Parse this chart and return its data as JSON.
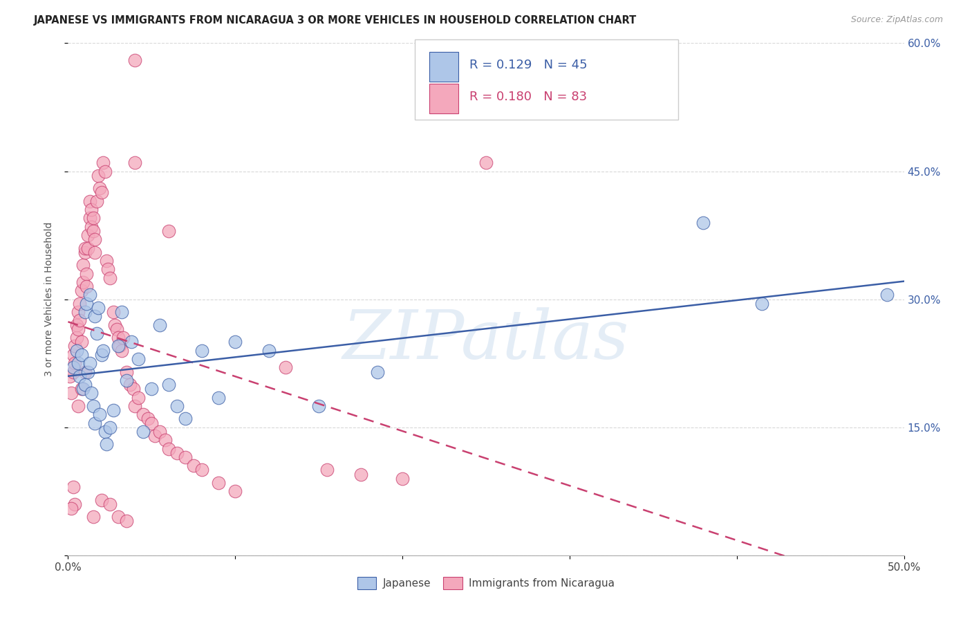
{
  "title": "JAPANESE VS IMMIGRANTS FROM NICARAGUA 3 OR MORE VEHICLES IN HOUSEHOLD CORRELATION CHART",
  "source": "Source: ZipAtlas.com",
  "ylabel": "3 or more Vehicles in Household",
  "x_min": 0.0,
  "x_max": 0.5,
  "y_min": 0.0,
  "y_max": 0.6,
  "x_ticks": [
    0.0,
    0.1,
    0.2,
    0.3,
    0.4,
    0.5
  ],
  "x_tick_labels_bottom": [
    "0.0%",
    "",
    "",
    "",
    "",
    "50.0%"
  ],
  "y_ticks": [
    0.0,
    0.15,
    0.3,
    0.45,
    0.6
  ],
  "y_tick_labels_right": [
    "",
    "15.0%",
    "30.0%",
    "45.0%",
    "60.0%"
  ],
  "legend_labels": [
    "Japanese",
    "Immigrants from Nicaragua"
  ],
  "R_japanese": 0.129,
  "N_japanese": 45,
  "R_nicaragua": 0.18,
  "N_nicaragua": 83,
  "color_japanese": "#aec6e8",
  "color_nicaragua": "#f4a8bc",
  "line_color_japanese": "#3b5ea6",
  "line_color_nicaragua": "#c94070",
  "text_color_blue": "#3b5ea6",
  "watermark": "ZIPatlas",
  "bg_color": "#ffffff",
  "grid_color": "#d8d8d8",
  "japanese_x": [
    0.003,
    0.005,
    0.006,
    0.007,
    0.008,
    0.009,
    0.01,
    0.01,
    0.011,
    0.012,
    0.013,
    0.013,
    0.014,
    0.015,
    0.016,
    0.016,
    0.017,
    0.018,
    0.019,
    0.02,
    0.021,
    0.022,
    0.023,
    0.025,
    0.027,
    0.03,
    0.032,
    0.035,
    0.038,
    0.042,
    0.045,
    0.05,
    0.055,
    0.06,
    0.065,
    0.07,
    0.08,
    0.09,
    0.1,
    0.12,
    0.15,
    0.185,
    0.38,
    0.415,
    0.49
  ],
  "japanese_y": [
    0.22,
    0.24,
    0.225,
    0.21,
    0.235,
    0.195,
    0.2,
    0.285,
    0.295,
    0.215,
    0.225,
    0.305,
    0.19,
    0.175,
    0.155,
    0.28,
    0.26,
    0.29,
    0.165,
    0.235,
    0.24,
    0.145,
    0.13,
    0.15,
    0.17,
    0.245,
    0.285,
    0.205,
    0.25,
    0.23,
    0.145,
    0.195,
    0.27,
    0.2,
    0.175,
    0.16,
    0.24,
    0.185,
    0.25,
    0.24,
    0.175,
    0.215,
    0.39,
    0.295,
    0.305
  ],
  "nicaragua_x": [
    0.001,
    0.002,
    0.003,
    0.003,
    0.004,
    0.004,
    0.005,
    0.005,
    0.006,
    0.006,
    0.007,
    0.007,
    0.008,
    0.008,
    0.009,
    0.009,
    0.01,
    0.01,
    0.011,
    0.011,
    0.012,
    0.012,
    0.013,
    0.013,
    0.014,
    0.014,
    0.015,
    0.015,
    0.016,
    0.016,
    0.017,
    0.018,
    0.019,
    0.02,
    0.021,
    0.022,
    0.023,
    0.024,
    0.025,
    0.027,
    0.028,
    0.029,
    0.03,
    0.031,
    0.032,
    0.033,
    0.035,
    0.037,
    0.039,
    0.04,
    0.042,
    0.045,
    0.048,
    0.05,
    0.052,
    0.055,
    0.058,
    0.06,
    0.065,
    0.07,
    0.075,
    0.08,
    0.09,
    0.1,
    0.04,
    0.25,
    0.04,
    0.06,
    0.13,
    0.155,
    0.175,
    0.2,
    0.02,
    0.025,
    0.03,
    0.035,
    0.015,
    0.01,
    0.008,
    0.006,
    0.004,
    0.003,
    0.002
  ],
  "nicaragua_y": [
    0.21,
    0.19,
    0.215,
    0.235,
    0.225,
    0.245,
    0.255,
    0.27,
    0.285,
    0.265,
    0.295,
    0.275,
    0.25,
    0.31,
    0.34,
    0.32,
    0.355,
    0.36,
    0.33,
    0.315,
    0.375,
    0.36,
    0.395,
    0.415,
    0.405,
    0.385,
    0.38,
    0.395,
    0.37,
    0.355,
    0.415,
    0.445,
    0.43,
    0.425,
    0.46,
    0.45,
    0.345,
    0.335,
    0.325,
    0.285,
    0.27,
    0.265,
    0.255,
    0.245,
    0.24,
    0.255,
    0.215,
    0.2,
    0.195,
    0.175,
    0.185,
    0.165,
    0.16,
    0.155,
    0.14,
    0.145,
    0.135,
    0.125,
    0.12,
    0.115,
    0.105,
    0.1,
    0.085,
    0.075,
    0.46,
    0.46,
    0.58,
    0.38,
    0.22,
    0.1,
    0.095,
    0.09,
    0.065,
    0.06,
    0.045,
    0.04,
    0.045,
    0.215,
    0.195,
    0.175,
    0.06,
    0.08,
    0.055
  ]
}
